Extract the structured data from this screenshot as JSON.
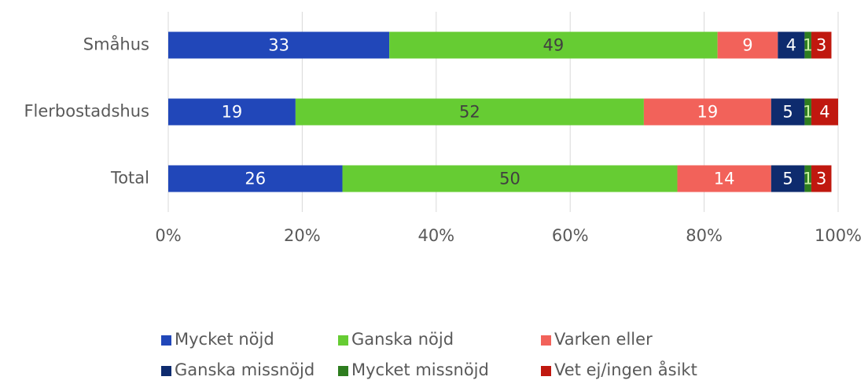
{
  "chart_data": {
    "type": "stacked-bar-horizontal",
    "categories": [
      "Småhus",
      "Flerbostadshus",
      "Total"
    ],
    "series": [
      {
        "name": "Mycket nöjd",
        "color": "#2147b9",
        "label_color": "#ffffff",
        "values": [
          33,
          19,
          26
        ]
      },
      {
        "name": "Ganska nöjd",
        "color": "#66cc33",
        "label_color": "#404040",
        "values": [
          49,
          52,
          50
        ]
      },
      {
        "name": "Varken eller",
        "color": "#f2625a",
        "label_color": "#ffffff",
        "values": [
          9,
          19,
          14
        ]
      },
      {
        "name": "Ganska missnöjd",
        "color": "#0e2b6e",
        "label_color": "#ffffff",
        "values": [
          4,
          5,
          5
        ]
      },
      {
        "name": "Mycket missnöjd",
        "color": "#2e7d1f",
        "label_color": "#c8f0a0",
        "values": [
          1,
          1,
          1
        ]
      },
      {
        "name": "Vet ej/ingen åsikt",
        "color": "#c0180f",
        "label_color": "#ffffff",
        "values": [
          3,
          4,
          3
        ]
      }
    ],
    "xlim": [
      0,
      100
    ],
    "xticks": [
      {
        "value": 0,
        "label": "0%"
      },
      {
        "value": 20,
        "label": "20%"
      },
      {
        "value": 40,
        "label": "40%"
      },
      {
        "value": 60,
        "label": "60%"
      },
      {
        "value": 80,
        "label": "80%"
      },
      {
        "value": 100,
        "label": "100%"
      }
    ],
    "grid": true,
    "legend": "bottom"
  }
}
